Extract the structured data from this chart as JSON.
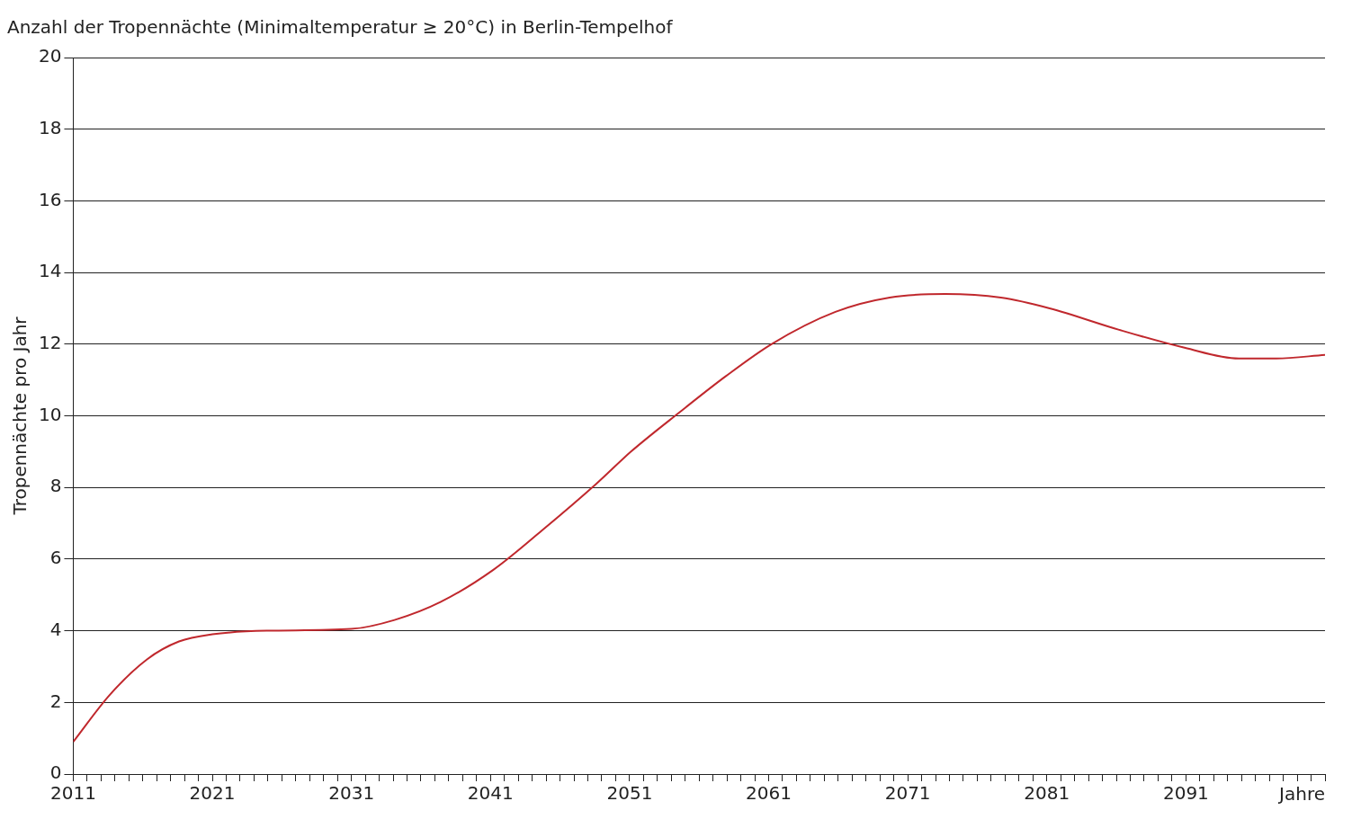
{
  "chart_data": {
    "type": "line",
    "title": "Anzahl der Tropennächte (Minimaltemperatur ≥ 20°C) in Berlin-Tempelhof",
    "xlabel": "Jahre",
    "ylabel": "Tropennächte pro Jahr",
    "x": [
      2011,
      2013.6,
      2016.3,
      2018.6,
      2021,
      2024.9,
      2031,
      2034.1,
      2037.4,
      2041.2,
      2044.7,
      2048.6,
      2051.1,
      2054.6,
      2057.9,
      2061.2,
      2065.8,
      2069.7,
      2073.7,
      2077.7,
      2081.2,
      2086.2,
      2090.9,
      2094.8,
      2097.5,
      2101
    ],
    "series": [
      {
        "color": "#c0282d",
        "values": [
          0.9,
          2.2,
          3.2,
          3.7,
          3.9,
          4.0,
          4.05,
          4.3,
          4.8,
          5.7,
          6.8,
          8.1,
          9.0,
          10.1,
          11.1,
          12.0,
          12.9,
          13.3,
          13.4,
          13.3,
          13.0,
          12.4,
          11.9,
          11.6,
          11.6,
          11.7
        ]
      }
    ],
    "xlim": [
      2011,
      2101
    ],
    "xticks": [
      2011,
      {
        "value": 2012,
        "label": null
      },
      {
        "value": 2013,
        "label": null
      },
      {
        "value": 2014,
        "label": null
      },
      {
        "value": 2015,
        "label": null
      },
      {
        "value": 2016,
        "label": null
      },
      {
        "value": 2017,
        "label": null
      },
      {
        "value": 2018,
        "label": null
      },
      {
        "value": 2019,
        "label": null
      },
      {
        "value": 2020,
        "label": null
      },
      2021,
      {
        "value": 2022,
        "label": null
      },
      {
        "value": 2023,
        "label": null
      },
      {
        "value": 2024,
        "label": null
      },
      {
        "value": 2025,
        "label": null
      },
      {
        "value": 2026,
        "label": null
      },
      {
        "value": 2027,
        "label": null
      },
      {
        "value": 2028,
        "label": null
      },
      {
        "value": 2029,
        "label": null
      },
      {
        "value": 2030,
        "label": null
      },
      2031,
      {
        "value": 2032,
        "label": null
      },
      {
        "value": 2033,
        "label": null
      },
      {
        "value": 2034,
        "label": null
      },
      {
        "value": 2035,
        "label": null
      },
      {
        "value": 2036,
        "label": null
      },
      {
        "value": 2037,
        "label": null
      },
      {
        "value": 2038,
        "label": null
      },
      {
        "value": 2039,
        "label": null
      },
      {
        "value": 2040,
        "label": null
      },
      2041,
      {
        "value": 2042,
        "label": null
      },
      {
        "value": 2043,
        "label": null
      },
      {
        "value": 2044,
        "label": null
      },
      {
        "value": 2045,
        "label": null
      },
      {
        "value": 2046,
        "label": null
      },
      {
        "value": 2047,
        "label": null
      },
      {
        "value": 2048,
        "label": null
      },
      {
        "value": 2049,
        "label": null
      },
      {
        "value": 2050,
        "label": null
      },
      2051,
      {
        "value": 2052,
        "label": null
      },
      {
        "value": 2053,
        "label": null
      },
      {
        "value": 2054,
        "label": null
      },
      {
        "value": 2055,
        "label": null
      },
      {
        "value": 2056,
        "label": null
      },
      {
        "value": 2057,
        "label": null
      },
      {
        "value": 2058,
        "label": null
      },
      {
        "value": 2059,
        "label": null
      },
      {
        "value": 2060,
        "label": null
      },
      2061,
      {
        "value": 2062,
        "label": null
      },
      {
        "value": 2063,
        "label": null
      },
      {
        "value": 2064,
        "label": null
      },
      {
        "value": 2065,
        "label": null
      },
      {
        "value": 2066,
        "label": null
      },
      {
        "value": 2067,
        "label": null
      },
      {
        "value": 2068,
        "label": null
      },
      {
        "value": 2069,
        "label": null
      },
      {
        "value": 2070,
        "label": null
      },
      2071,
      {
        "value": 2072,
        "label": null
      },
      {
        "value": 2073,
        "label": null
      },
      {
        "value": 2074,
        "label": null
      },
      {
        "value": 2075,
        "label": null
      },
      {
        "value": 2076,
        "label": null
      },
      {
        "value": 2077,
        "label": null
      },
      {
        "value": 2078,
        "label": null
      },
      {
        "value": 2079,
        "label": null
      },
      {
        "value": 2080,
        "label": null
      },
      2081,
      {
        "value": 2082,
        "label": null
      },
      {
        "value": 2083,
        "label": null
      },
      {
        "value": 2084,
        "label": null
      },
      {
        "value": 2085,
        "label": null
      },
      {
        "value": 2086,
        "label": null
      },
      {
        "value": 2087,
        "label": null
      },
      {
        "value": 2088,
        "label": null
      },
      {
        "value": 2089,
        "label": null
      },
      {
        "value": 2090,
        "label": null
      },
      2091,
      {
        "value": 2092,
        "label": null
      },
      {
        "value": 2093,
        "label": null
      },
      {
        "value": 2094,
        "label": null
      },
      {
        "value": 2095,
        "label": null
      },
      {
        "value": 2096,
        "label": null
      },
      {
        "value": 2097,
        "label": null
      },
      {
        "value": 2098,
        "label": null
      },
      {
        "value": 2099,
        "label": null
      },
      {
        "value": 2100,
        "label": null
      },
      {
        "value": 2101,
        "label": null
      }
    ],
    "ylim": [
      0,
      20
    ],
    "yticks": [
      0,
      2,
      4,
      6,
      8,
      10,
      12,
      14,
      16,
      18,
      20
    ],
    "grid": "y",
    "legend": false,
    "marker": "none",
    "line_style": "solid"
  }
}
